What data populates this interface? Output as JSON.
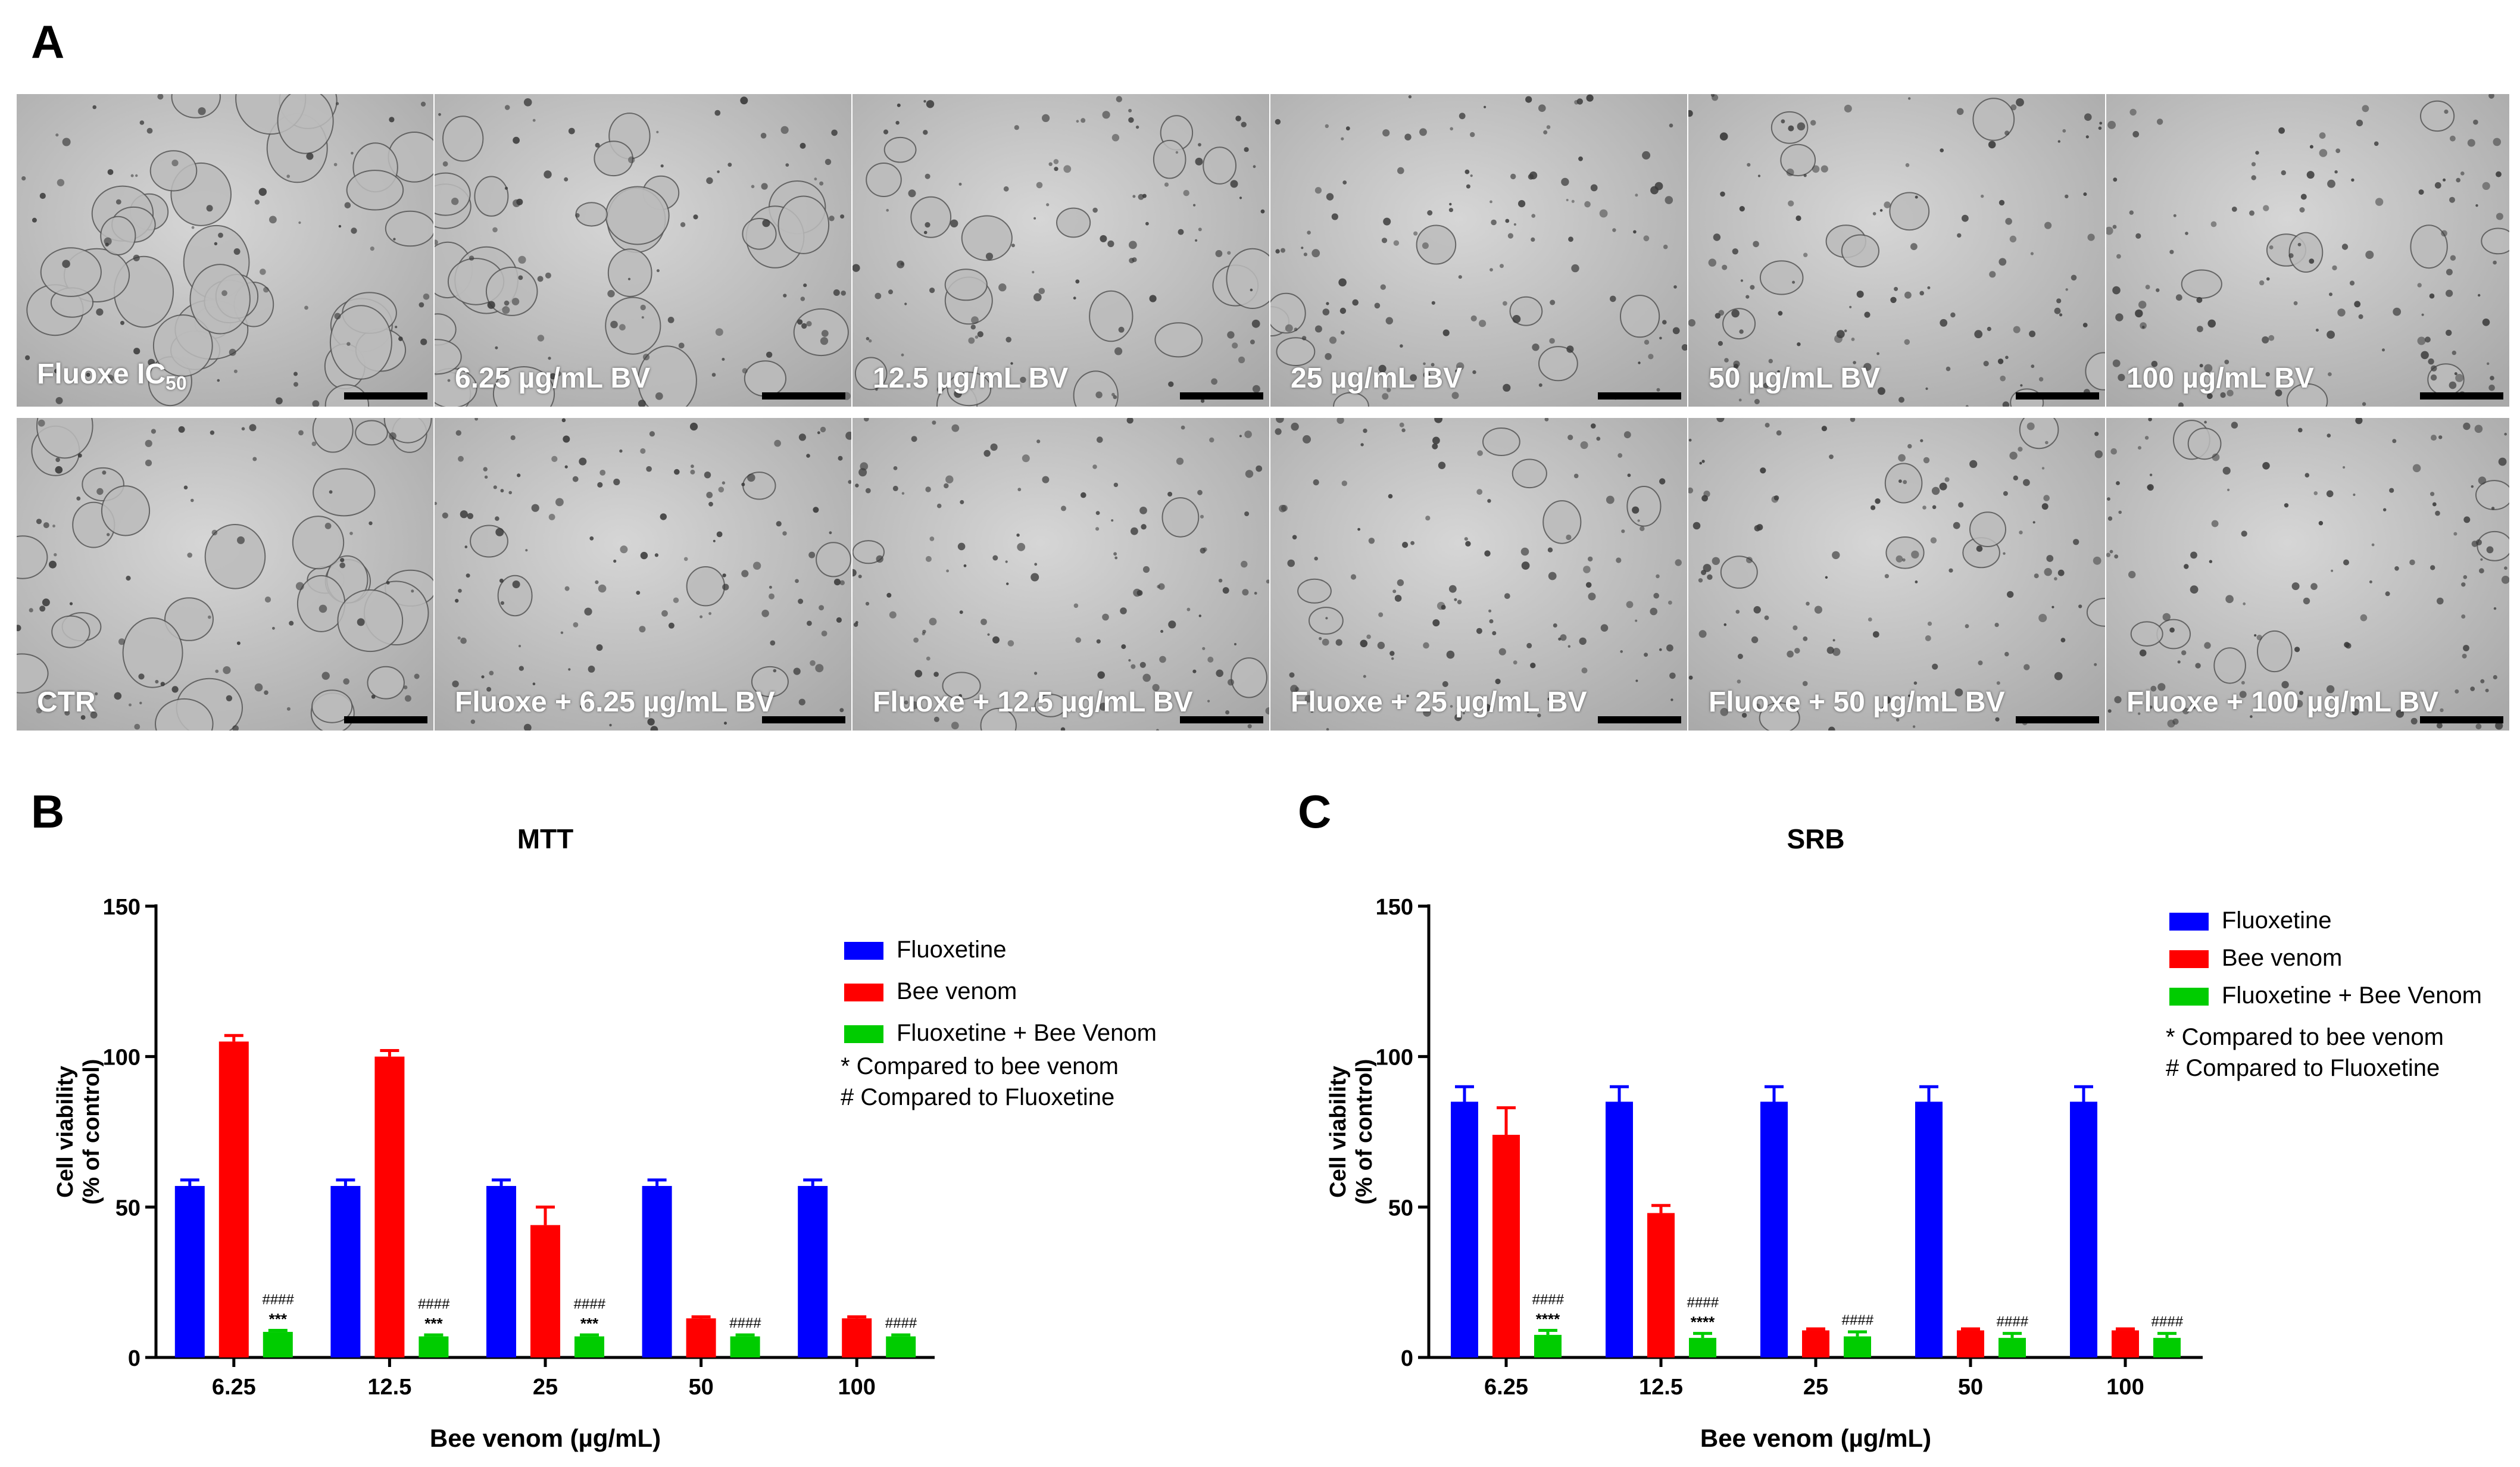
{
  "panels": {
    "a_letter": "A",
    "b_letter": "B",
    "c_letter": "C"
  },
  "micrographs": {
    "row1": [
      {
        "label": "Fluoxe IC",
        "sub": "50"
      },
      {
        "label": "6.25 µg/mL BV"
      },
      {
        "label": "12.5 µg/mL BV"
      },
      {
        "label": "25 µg/mL BV"
      },
      {
        "label": "50 µg/mL BV"
      },
      {
        "label": "100 µg/mL BV"
      }
    ],
    "row2": [
      {
        "label": "CTR"
      },
      {
        "label": "Fluoxe + 6.25 µg/mL BV"
      },
      {
        "label": "Fluoxe + 12.5 µg/mL BV"
      },
      {
        "label": "Fluoxe + 25 µg/mL BV"
      },
      {
        "label": "Fluoxe + 50 µg/mL BV"
      },
      {
        "label": "Fluoxe + 100 µg/mL BV"
      }
    ],
    "row1_density": [
      0.9,
      0.7,
      0.45,
      0.2,
      0.25,
      0.2
    ],
    "row2_density": [
      0.75,
      0.15,
      0.15,
      0.15,
      0.2,
      0.2
    ]
  },
  "chart_data": [
    {
      "type": "bar",
      "title": "MTT",
      "xlabel": "Bee venom (µg/mL)",
      "ylabel_line1": "Cell viability",
      "ylabel_line2": "(% of control)",
      "ylim": [
        0,
        150
      ],
      "yticks": [
        "0",
        "50",
        "100",
        "150"
      ],
      "categories": [
        "6.25",
        "12.5",
        "25",
        "50",
        "100"
      ],
      "series": [
        {
          "name": "Fluoxetine",
          "color": "#0000ff",
          "values": [
            57,
            57,
            57,
            57,
            57
          ],
          "errors": [
            2,
            2,
            2,
            2,
            2
          ]
        },
        {
          "name": "Bee venom",
          "color": "#ff0000",
          "values": [
            105,
            100,
            44,
            13,
            13
          ],
          "errors": [
            2,
            2,
            6,
            0.5,
            0.5
          ]
        },
        {
          "name": "Fluoxetine + Bee Venom",
          "color": "#00cc00",
          "values": [
            8.5,
            7,
            7,
            7,
            7
          ],
          "errors": [
            0.5,
            0.5,
            0.5,
            0.5,
            0.5
          ]
        }
      ],
      "annotations_top": [
        "####",
        "####",
        "####",
        "####",
        "####"
      ],
      "annotations_bottom": [
        "***",
        "***",
        "***",
        "",
        ""
      ],
      "notes": [
        "* Compared to bee venom",
        "# Compared to Fluoxetine"
      ],
      "legend": "right"
    },
    {
      "type": "bar",
      "title": "SRB",
      "xlabel": "Bee venom (µg/mL)",
      "ylabel_line1": "Cell viability",
      "ylabel_line2": "(% of control)",
      "ylim": [
        0,
        150
      ],
      "yticks": [
        "0",
        "50",
        "100",
        "150"
      ],
      "categories": [
        "6.25",
        "12.5",
        "25",
        "50",
        "100"
      ],
      "series": [
        {
          "name": "Fluoxetine",
          "color": "#0000ff",
          "values": [
            85,
            85,
            85,
            85,
            85
          ],
          "errors": [
            5,
            5,
            5,
            5,
            5
          ]
        },
        {
          "name": "Bee venom",
          "color": "#ff0000",
          "values": [
            74,
            48,
            9,
            9,
            9
          ],
          "errors": [
            9,
            2.5,
            0.5,
            0.5,
            0.5
          ]
        },
        {
          "name": "Fluoxetine + Bee Venom",
          "color": "#00cc00",
          "values": [
            7.5,
            6.5,
            7,
            6.5,
            6.5
          ],
          "errors": [
            1.5,
            1.5,
            1.5,
            1.5,
            1.5
          ]
        }
      ],
      "annotations_top": [
        "####",
        "####",
        "####",
        "####",
        "####"
      ],
      "annotations_bottom": [
        "****",
        "****",
        "",
        "",
        ""
      ],
      "notes": [
        "* Compared to bee venom",
        "# Compared to Fluoxetine"
      ],
      "legend": "right"
    }
  ]
}
